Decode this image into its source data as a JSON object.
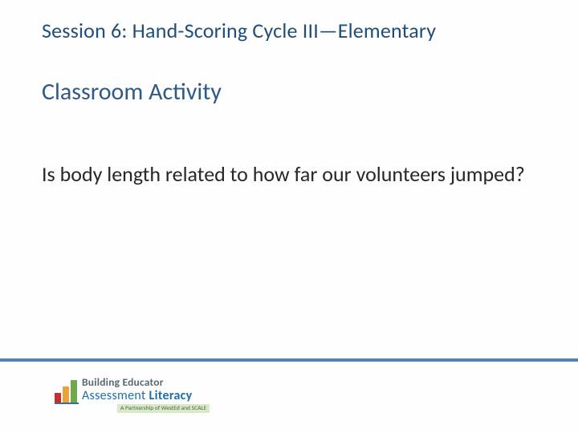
{
  "colors": {
    "title": "#1f4e79",
    "subtitle": "#2e5a87",
    "body": "#262626",
    "background": "#fefefe",
    "rule": "#4f81bd",
    "logo_main": "#5b6770",
    "logo_sub": "#1f6fa8",
    "logo_tag_bg": "#d9e8c8",
    "logo_tag_text": "#50683a",
    "bar1": "#c32f2f",
    "bar2": "#e8a33d",
    "bar3": "#6fa94c",
    "bar_rule": "#3a6b9c"
  },
  "title": "Session 6: Hand-Scoring Cycle III—Elementary",
  "subtitle": "Classroom Activity",
  "body": "Is body length related to how far our volunteers jumped?",
  "logo": {
    "main": "Building Educator",
    "sub_plain": "Assessment ",
    "sub_bold": "Literacy",
    "tagline": "A Partnership of WestEd and SCALE",
    "bars": [
      {
        "h": 12
      },
      {
        "h": 20
      },
      {
        "h": 28
      }
    ]
  }
}
